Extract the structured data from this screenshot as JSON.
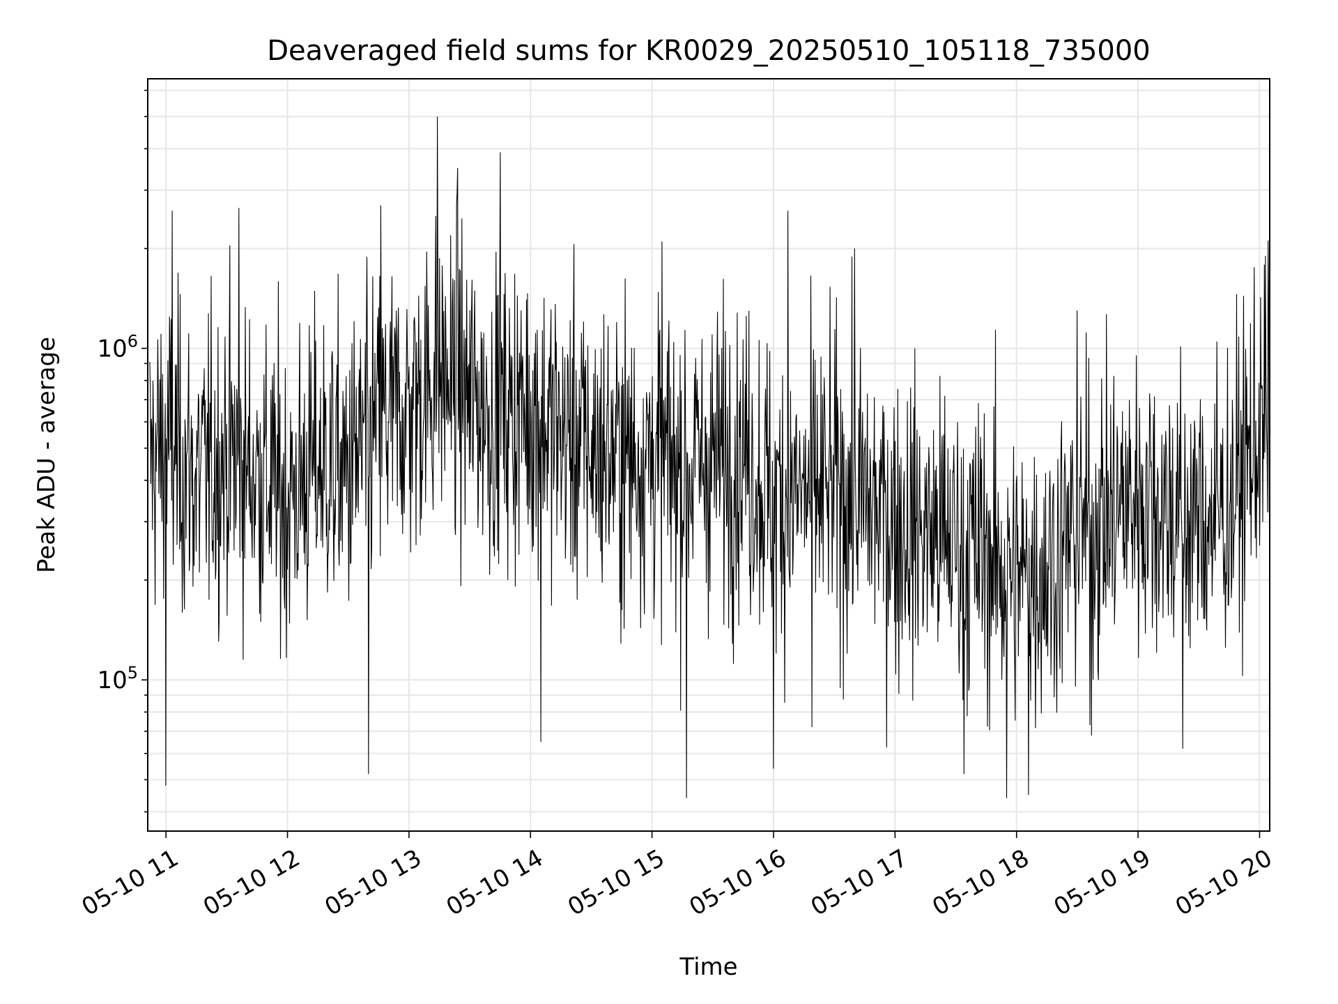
{
  "chart_data": {
    "type": "line",
    "title": "Deaveraged field sums for KR0029_20250510_105118_735000",
    "xlabel": "Time",
    "ylabel": "Peak ADU - average",
    "yscale": "log",
    "grid": true,
    "legend": "none",
    "colors": {
      "line": "#000000",
      "grid": "#e6e6e6",
      "axes": "#000000",
      "background": "#ffffff"
    },
    "xlim": [
      "05-10 10:51",
      "05-10 20:05"
    ],
    "ylim": [
      35000,
      6500000
    ],
    "x_tick_labels": [
      "05-10 11",
      "05-10 12",
      "05-10 13",
      "05-10 14",
      "05-10 15",
      "05-10 16",
      "05-10 17",
      "05-10 18",
      "05-10 19",
      "05-10 20"
    ],
    "y_tick_labels": [
      {
        "base": "10",
        "exp": "5",
        "value": 100000
      },
      {
        "base": "10",
        "exp": "6",
        "value": 1000000
      }
    ],
    "series": [
      {
        "x": [
          "05-10 10:52",
          "05-10 11:00",
          "05-10 11:15",
          "05-10 11:30",
          "05-10 11:45",
          "05-10 12:00",
          "05-10 12:15",
          "05-10 12:30",
          "05-10 12:45",
          "05-10 13:00",
          "05-10 13:15",
          "05-10 13:30",
          "05-10 13:45",
          "05-10 14:00",
          "05-10 14:15",
          "05-10 14:30",
          "05-10 14:45",
          "05-10 15:00",
          "05-10 15:15",
          "05-10 15:30",
          "05-10 15:45",
          "05-10 16:00",
          "05-10 16:15",
          "05-10 16:30",
          "05-10 16:45",
          "05-10 17:00",
          "05-10 17:15",
          "05-10 17:30",
          "05-10 17:45",
          "05-10 18:00",
          "05-10 18:15",
          "05-10 18:30",
          "05-10 18:45",
          "05-10 19:00",
          "05-10 19:15",
          "05-10 19:30",
          "05-10 19:45",
          "05-10 20:00"
        ],
        "y": [
          450000,
          520000,
          400000,
          480000,
          420000,
          350000,
          450000,
          420000,
          600000,
          650000,
          850000,
          700000,
          620000,
          650000,
          550000,
          500000,
          470000,
          480000,
          430000,
          460000,
          480000,
          350000,
          360000,
          380000,
          340000,
          300000,
          280000,
          260000,
          240000,
          200000,
          220000,
          280000,
          310000,
          360000,
          330000,
          300000,
          330000,
          570000
        ],
        "spikes": [
          {
            "x": "05-10 11:03",
            "y": 2600000
          },
          {
            "x": "05-10 11:36",
            "y": 2650000
          },
          {
            "x": "05-10 12:46",
            "y": 2700000
          },
          {
            "x": "05-10 13:14",
            "y": 5000000
          },
          {
            "x": "05-10 13:24",
            "y": 3500000
          },
          {
            "x": "05-10 13:45",
            "y": 3900000
          },
          {
            "x": "05-10 15:05",
            "y": 2100000
          },
          {
            "x": "05-10 16:07",
            "y": 2600000
          },
          {
            "x": "05-10 16:40",
            "y": 2000000
          },
          {
            "x": "05-10 18:30",
            "y": 1300000
          },
          {
            "x": "05-10 20:03",
            "y": 1900000
          },
          {
            "x": "05-10 11:00",
            "y": 48000
          },
          {
            "x": "05-10 12:40",
            "y": 52000
          },
          {
            "x": "05-10 14:05",
            "y": 65000
          },
          {
            "x": "05-10 15:17",
            "y": 44000
          },
          {
            "x": "05-10 16:00",
            "y": 54000
          },
          {
            "x": "05-10 16:19",
            "y": 72000
          },
          {
            "x": "05-10 17:34",
            "y": 52000
          },
          {
            "x": "05-10 17:55",
            "y": 44000
          },
          {
            "x": "05-10 18:06",
            "y": 45000
          },
          {
            "x": "05-10 18:37",
            "y": 68000
          },
          {
            "x": "05-10 19:22",
            "y": 62000
          }
        ]
      }
    ]
  }
}
